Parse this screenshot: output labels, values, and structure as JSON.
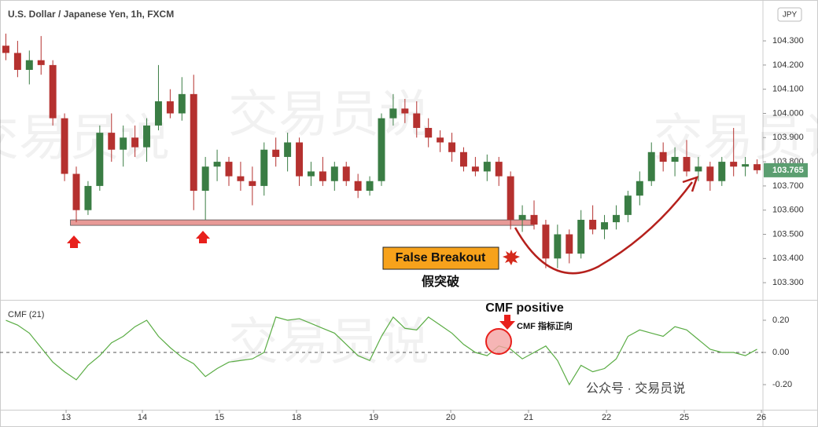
{
  "chart_data": [
    {
      "type": "candlestick",
      "title": "U.S. Dollar / Japanese Yen, 1h, FXCM",
      "currency": "JPY",
      "up_color": "#3a7d44",
      "down_color": "#b5312f",
      "xlim": [
        0,
        65
      ],
      "ylim": [
        103.229,
        104.469
      ],
      "yticks": [
        {
          "value": 103.3,
          "label": "103.300"
        },
        {
          "value": 103.4,
          "label": "103.400"
        },
        {
          "value": 103.5,
          "label": "103.500"
        },
        {
          "value": 103.6,
          "label": "103.600"
        },
        {
          "value": 103.7,
          "label": "103.700"
        },
        {
          "value": 103.8,
          "label": "103.800"
        },
        {
          "value": 103.9,
          "label": "103.900"
        },
        {
          "value": 104.0,
          "label": "104.000"
        },
        {
          "value": 104.1,
          "label": "104.100"
        },
        {
          "value": 104.2,
          "label": "104.200"
        },
        {
          "value": 104.3,
          "label": "104.300"
        }
      ],
      "support": 103.55,
      "annotations": {
        "false_breakout": "False Breakout",
        "false_breakout_cn": "假突破",
        "cmf_positive": "CMF positive",
        "cmf_positive_cn": "CMF 指标正向",
        "watermark": "交易员说",
        "credit": "公众号 · 交易员说"
      },
      "open": [
        104.28,
        104.25,
        104.18,
        104.22,
        104.2,
        103.98,
        103.75,
        103.6,
        103.7,
        103.92,
        103.85,
        103.9,
        103.86,
        103.95,
        104.05,
        104.0,
        104.08,
        103.68,
        103.78,
        103.8,
        103.74,
        103.72,
        103.7,
        103.85,
        103.82,
        103.88,
        103.74,
        103.76,
        103.72,
        103.78,
        103.72,
        103.68,
        103.72,
        103.98,
        104.02,
        104.0,
        103.94,
        103.9,
        103.88,
        103.84,
        103.78,
        103.76,
        103.8,
        103.74,
        103.56,
        103.58,
        103.54,
        103.4,
        103.5,
        103.42,
        103.56,
        103.52,
        103.55,
        103.58,
        103.66,
        103.72,
        103.84,
        103.8,
        103.82,
        103.76,
        103.78,
        103.72,
        103.8,
        103.78,
        103.79
      ],
      "high": [
        104.33,
        104.3,
        104.26,
        104.32,
        104.22,
        104.0,
        103.78,
        103.72,
        103.95,
        104.0,
        103.95,
        103.95,
        103.98,
        104.2,
        104.1,
        104.15,
        104.16,
        103.82,
        103.85,
        103.82,
        103.8,
        103.78,
        103.88,
        103.9,
        103.92,
        103.9,
        103.8,
        103.82,
        103.8,
        103.8,
        103.75,
        103.74,
        104.0,
        104.08,
        104.06,
        104.05,
        103.98,
        103.93,
        103.92,
        103.86,
        103.82,
        103.83,
        103.82,
        103.76,
        103.62,
        103.64,
        103.56,
        103.54,
        103.52,
        103.6,
        103.62,
        103.58,
        103.62,
        103.68,
        103.76,
        103.88,
        103.88,
        103.86,
        103.89,
        103.82,
        103.8,
        103.82,
        103.94,
        103.82,
        103.81
      ],
      "low": [
        104.22,
        104.15,
        104.12,
        104.16,
        103.95,
        103.72,
        103.55,
        103.58,
        103.68,
        103.8,
        103.78,
        103.82,
        103.8,
        103.93,
        103.98,
        103.97,
        103.6,
        103.56,
        103.72,
        103.7,
        103.68,
        103.62,
        103.66,
        103.78,
        103.76,
        103.7,
        103.7,
        103.7,
        103.68,
        103.7,
        103.65,
        103.66,
        103.7,
        103.95,
        103.96,
        103.9,
        103.86,
        103.84,
        103.8,
        103.76,
        103.74,
        103.72,
        103.7,
        103.52,
        103.51,
        103.52,
        103.36,
        103.36,
        103.38,
        103.4,
        103.5,
        103.48,
        103.52,
        103.55,
        103.62,
        103.7,
        103.76,
        103.74,
        103.74,
        103.72,
        103.68,
        103.7,
        103.74,
        103.74,
        103.75
      ],
      "close": [
        104.25,
        104.18,
        104.22,
        104.2,
        103.98,
        103.75,
        103.6,
        103.7,
        103.92,
        103.85,
        103.9,
        103.86,
        103.95,
        104.05,
        104.0,
        104.08,
        103.68,
        103.78,
        103.8,
        103.74,
        103.72,
        103.7,
        103.85,
        103.82,
        103.88,
        103.74,
        103.76,
        103.72,
        103.78,
        103.72,
        103.68,
        103.72,
        103.98,
        104.02,
        104.0,
        103.94,
        103.9,
        103.88,
        103.84,
        103.78,
        103.76,
        103.8,
        103.74,
        103.56,
        103.58,
        103.54,
        103.4,
        103.5,
        103.42,
        103.56,
        103.52,
        103.55,
        103.58,
        103.66,
        103.72,
        103.84,
        103.8,
        103.82,
        103.76,
        103.78,
        103.72,
        103.8,
        103.78,
        103.79,
        103.765
      ]
    },
    {
      "type": "line",
      "title": "CMF (21)",
      "color": "#5aac44",
      "xlim": [
        0,
        65
      ],
      "ylim": [
        -0.356,
        0.322
      ],
      "yticks": [
        {
          "value": -0.2,
          "label": "-0.20"
        },
        {
          "value": 0,
          "label": "0.00"
        },
        {
          "value": 0.2,
          "label": "0.20"
        }
      ],
      "xticks": [
        {
          "value": 5.63,
          "label": "13"
        },
        {
          "value": 12.13,
          "label": "14"
        },
        {
          "value": 18.7,
          "label": "15"
        },
        {
          "value": 25.26,
          "label": "18"
        },
        {
          "value": 31.83,
          "label": "19"
        },
        {
          "value": 38.4,
          "label": "20"
        },
        {
          "value": 45.03,
          "label": "21"
        },
        {
          "value": 51.67,
          "label": "22"
        },
        {
          "value": 58.3,
          "label": "25"
        },
        {
          "value": 64.87,
          "label": "26"
        }
      ],
      "values": [
        0.2,
        0.17,
        0.12,
        0.03,
        -0.06,
        -0.12,
        -0.17,
        -0.08,
        -0.02,
        0.06,
        0.1,
        0.16,
        0.2,
        0.1,
        0.03,
        -0.03,
        -0.07,
        -0.15,
        -0.1,
        -0.06,
        -0.05,
        -0.04,
        0.0,
        0.22,
        0.2,
        0.21,
        0.18,
        0.15,
        0.12,
        0.05,
        -0.02,
        -0.05,
        0.1,
        0.22,
        0.15,
        0.14,
        0.22,
        0.17,
        0.12,
        0.05,
        0.0,
        -0.02,
        0.04,
        0.02,
        -0.04,
        0.0,
        0.04,
        -0.05,
        -0.2,
        -0.08,
        -0.12,
        -0.1,
        -0.04,
        0.1,
        0.14,
        0.12,
        0.1,
        0.16,
        0.14,
        0.08,
        0.02,
        0.0,
        0.0,
        -0.02,
        0.02
      ]
    }
  ]
}
